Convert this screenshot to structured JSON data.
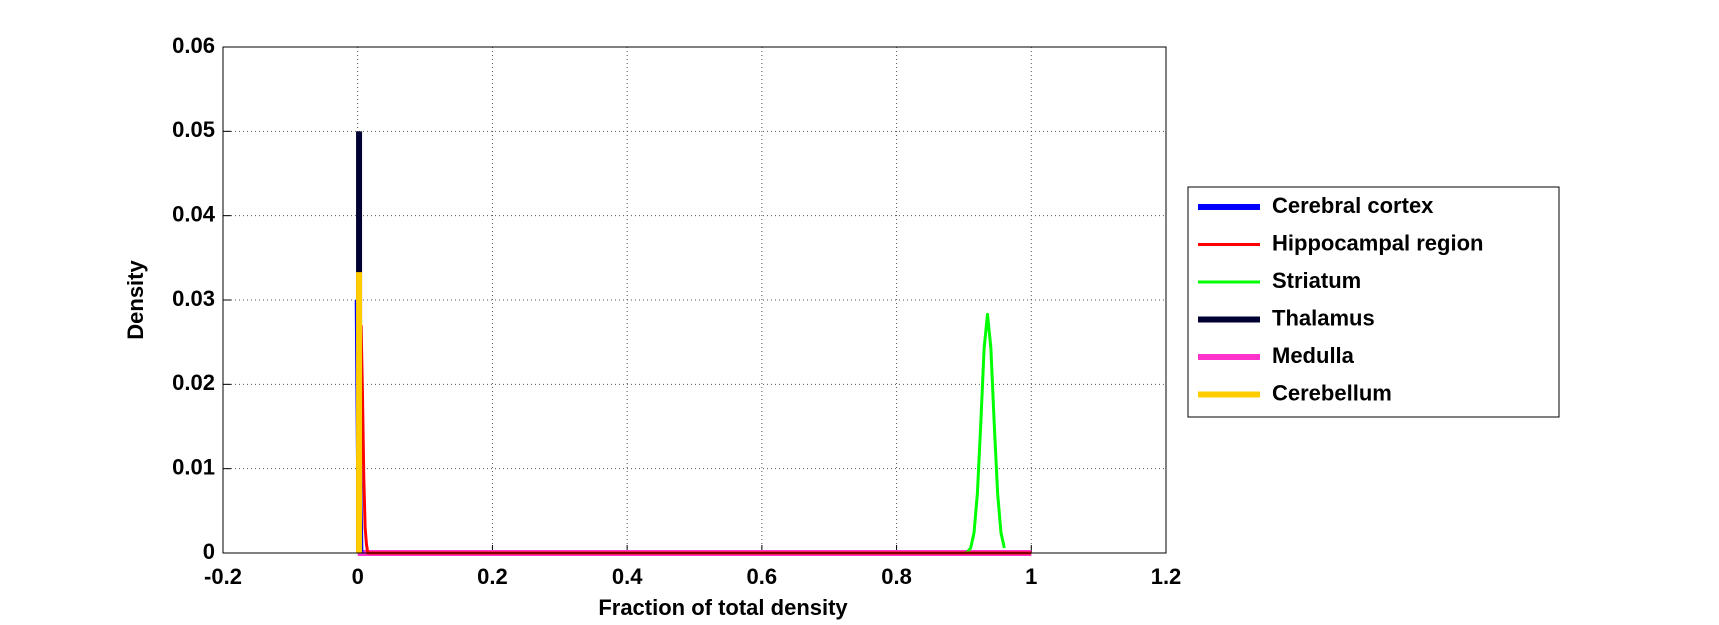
{
  "chart_data": {
    "type": "line",
    "xlabel": "Fraction of total density",
    "ylabel": "Density",
    "xlim": [
      -0.2,
      1.2
    ],
    "xticks": [
      -0.2,
      0,
      0.2,
      0.4,
      0.6,
      0.8,
      1,
      1.2
    ],
    "ylim": [
      0,
      0.06
    ],
    "yticks": [
      0,
      0.01,
      0.02,
      0.03,
      0.04,
      0.05,
      0.06
    ],
    "grid": true,
    "legend": "outside-right",
    "series": [
      {
        "name": "Cerebral cortex",
        "color": "#0000ff",
        "line_width": 6,
        "x": [
          0,
          0.002,
          0.004
        ],
        "values": [
          0.03,
          0.01,
          0
        ]
      },
      {
        "name": "Hippocampal region",
        "color": "#ff0000",
        "line_width": 3,
        "x": [
          0.005,
          0.007,
          0.009,
          0.011,
          0.013,
          0.015,
          1
        ],
        "values": [
          0.027,
          0.019,
          0.009,
          0.003,
          0.001,
          0,
          0
        ]
      },
      {
        "name": "Striatum",
        "color": "#00ff00",
        "line_width": 3,
        "x": [
          0.9,
          0.905,
          0.91,
          0.915,
          0.92,
          0.925,
          0.93,
          0.935,
          0.94,
          0.945,
          0.95,
          0.955,
          0.96
        ],
        "values": [
          0,
          0.0001,
          0.0006,
          0.0024,
          0.0071,
          0.0153,
          0.0243,
          0.0283,
          0.0243,
          0.0153,
          0.0071,
          0.0024,
          0.0006
        ]
      },
      {
        "name": "Thalamus",
        "color": "#000033",
        "line_width": 6,
        "x": [
          0.002,
          0.002
        ],
        "values": [
          0.05,
          0
        ]
      },
      {
        "name": "Medulla",
        "color": "#ff33cc",
        "line_width": 6,
        "x": [
          0,
          1
        ],
        "values": [
          0,
          0
        ]
      },
      {
        "name": "Cerebellum",
        "color": "#ffcc00",
        "line_width": 6,
        "x": [
          0.002,
          0.002
        ],
        "values": [
          0.0333,
          0
        ]
      }
    ]
  }
}
